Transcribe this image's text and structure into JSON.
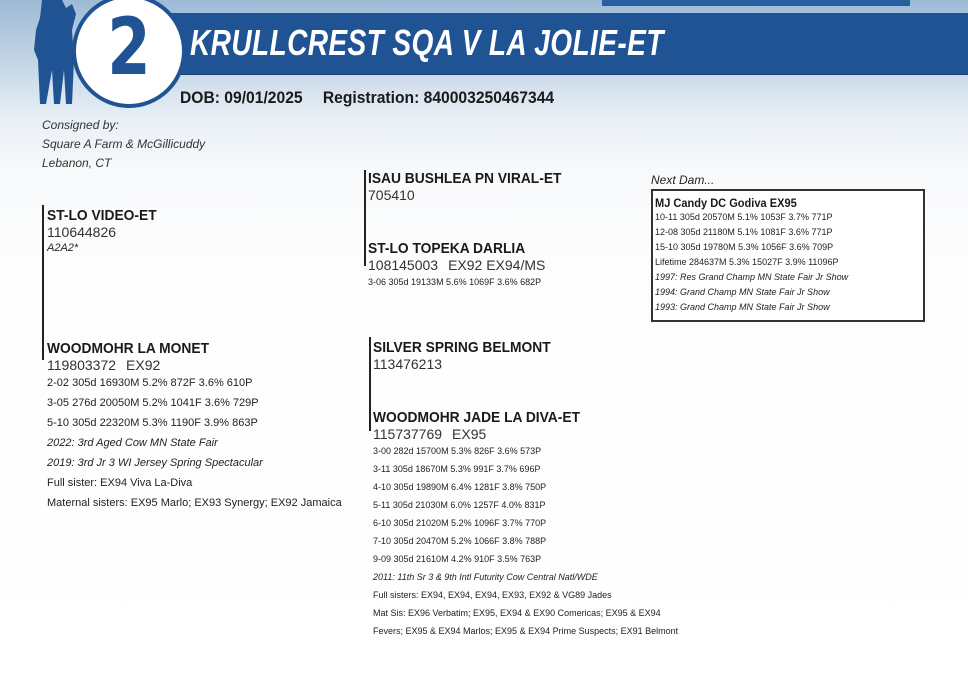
{
  "lot": {
    "number": "2",
    "name": "KRULLCREST SQA V LA JOLIE-ET",
    "dob": "DOB: 09/01/2025",
    "registration": "Registration: 840003250467344",
    "brand_color": "#1f5394"
  },
  "consignor": {
    "label": "Consigned by:",
    "name": "Square A Farm & McGillicuddy",
    "location": "Lebanon, CT"
  },
  "sire": {
    "name": "ST-LO VIDEO-ET",
    "reg": "110644826",
    "note": "A2A2*"
  },
  "sire_sire": {
    "name": "ISAU BUSHLEA PN VIRAL-ET",
    "reg": "705410"
  },
  "sire_dam": {
    "name": "ST-LO TOPEKA DARLIA",
    "reg": "108145003",
    "score": "EX92 EX94/MS",
    "records": [
      "3-06 305d 19133M 5.6% 1069F 3.6% 682P"
    ]
  },
  "dam": {
    "name": "WOODMOHR LA MONET",
    "reg": "119803372",
    "score": "EX92",
    "records": [
      "2-02 305d 16930M 5.2% 872F 3.6% 610P",
      "3-05 276d 20050M 5.2% 1041F 3.6% 729P",
      "5-10 305d 22320M 5.3% 1190F 3.9% 863P"
    ],
    "awards": [
      "2022: 3rd Aged Cow MN State Fair",
      "2019: 3rd Jr 3 WI Jersey Spring Spectacular"
    ],
    "notes": [
      "Full sister: EX94 Viva La-Diva",
      "Maternal sisters: EX95 Marlo; EX93 Synergy; EX92 Jamaica"
    ]
  },
  "dam_sire": {
    "name": "SILVER SPRING BELMONT",
    "reg": "113476213"
  },
  "dam_dam": {
    "name": "WOODMOHR JADE LA DIVA-ET",
    "reg": "115737769",
    "score": "EX95",
    "records": [
      "3-00 282d 15700M 5.3% 826F 3.6% 573P",
      "3-11 305d 18670M 5.3% 991F 3.7% 696P",
      "4-10 305d 19890M 6.4% 1281F 3.8% 750P",
      "5-11 305d 21030M 6.0% 1257F 4.0% 831P",
      "6-10 305d 21020M 5.2% 1096F 3.7% 770P",
      "7-10 305d 20470M 5.2% 1066F 3.8% 788P",
      "9-09 305d 21610M 4.2% 910F 3.5% 763P"
    ],
    "awards": [
      "2011: 11th Sr 3 & 9th Intl Futurity Cow Central Natl/WDE"
    ],
    "notes": [
      "Full sisters: EX94, EX94, EX94, EX93, EX92 & VG89 Jades",
      "Mat Sis: EX96 Verbatim; EX95, EX94 & EX90 Comericas; EX95 & EX94",
      "Fevers; EX95 & EX94 Marlos; EX95 & EX94 Prime Suspects; EX91 Belmont"
    ]
  },
  "next_dam": {
    "label": "Next Dam...",
    "name": "MJ Candy DC Godiva EX95",
    "records": [
      "10-11 305d 20570M 5.1% 1053F 3.7% 771P",
      "12-08 305d 21180M 5.1% 1081F 3.6% 771P",
      "15-10 305d 19780M 5.3% 1056F 3.6% 709P",
      "Lifetime 284637M 5.3% 15027F 3.9% 11096P"
    ],
    "awards": [
      "1997: Res Grand Champ MN State Fair Jr Show",
      "1994: Grand Champ MN State Fair Jr Show",
      "1993: Grand Champ MN State Fair Jr Show"
    ]
  }
}
